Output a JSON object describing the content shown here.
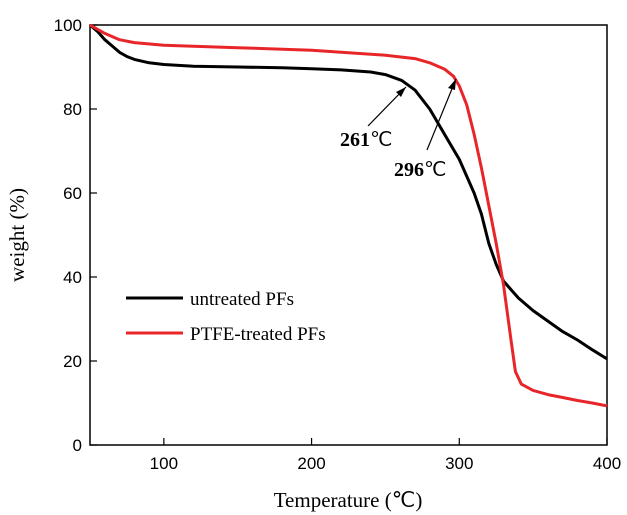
{
  "chart_data": {
    "type": "line",
    "xlabel": "Temperature (℃)",
    "ylabel": "weight (%)",
    "xlim": [
      50,
      400
    ],
    "ylim": [
      0,
      100
    ],
    "xticks": [
      100,
      200,
      300,
      400
    ],
    "yticks": [
      0,
      20,
      40,
      60,
      80,
      100
    ],
    "x_tick_labels": [
      "100",
      "200",
      "300",
      "400"
    ],
    "y_tick_labels": [
      "0",
      "20",
      "40",
      "60",
      "80",
      "100"
    ],
    "grid": false,
    "legend_position": "lower-left",
    "series": [
      {
        "name": "untreated PFs",
        "color": "#000000",
        "points": [
          [
            50,
            100
          ],
          [
            55,
            98.5
          ],
          [
            60,
            96.5
          ],
          [
            65,
            95
          ],
          [
            70,
            93.5
          ],
          [
            75,
            92.5
          ],
          [
            80,
            91.8
          ],
          [
            90,
            91
          ],
          [
            100,
            90.6
          ],
          [
            120,
            90.2
          ],
          [
            150,
            90
          ],
          [
            180,
            89.8
          ],
          [
            200,
            89.6
          ],
          [
            220,
            89.3
          ],
          [
            240,
            88.8
          ],
          [
            250,
            88.2
          ],
          [
            261,
            86.8
          ],
          [
            270,
            84.5
          ],
          [
            280,
            80
          ],
          [
            290,
            74
          ],
          [
            300,
            68
          ],
          [
            310,
            60
          ],
          [
            315,
            55
          ],
          [
            320,
            48
          ],
          [
            325,
            43
          ],
          [
            330,
            39
          ],
          [
            335,
            37
          ],
          [
            340,
            35
          ],
          [
            350,
            32
          ],
          [
            360,
            29.5
          ],
          [
            370,
            27
          ],
          [
            380,
            25
          ],
          [
            390,
            22.7
          ],
          [
            400,
            20.5
          ]
        ]
      },
      {
        "name": "PTFE-treated PFs",
        "color": "#e8262a",
        "points": [
          [
            50,
            100
          ],
          [
            60,
            98
          ],
          [
            70,
            96.5
          ],
          [
            80,
            95.8
          ],
          [
            100,
            95.2
          ],
          [
            150,
            94.6
          ],
          [
            200,
            94
          ],
          [
            250,
            92.8
          ],
          [
            270,
            92
          ],
          [
            280,
            91
          ],
          [
            290,
            89.5
          ],
          [
            296,
            87.8
          ],
          [
            300,
            85.5
          ],
          [
            305,
            81
          ],
          [
            310,
            74
          ],
          [
            315,
            66
          ],
          [
            320,
            57
          ],
          [
            325,
            48
          ],
          [
            330,
            38
          ],
          [
            335,
            25
          ],
          [
            338,
            17.5
          ],
          [
            342,
            14.5
          ],
          [
            350,
            13
          ],
          [
            360,
            12
          ],
          [
            370,
            11.3
          ],
          [
            380,
            10.6
          ],
          [
            390,
            10
          ],
          [
            400,
            9.3
          ]
        ]
      }
    ],
    "annotations": [
      {
        "value": "261",
        "unit": "℃",
        "point": [
          261,
          86.8
        ]
      },
      {
        "value": "296",
        "unit": "℃",
        "point": [
          296,
          87.8
        ]
      }
    ]
  }
}
